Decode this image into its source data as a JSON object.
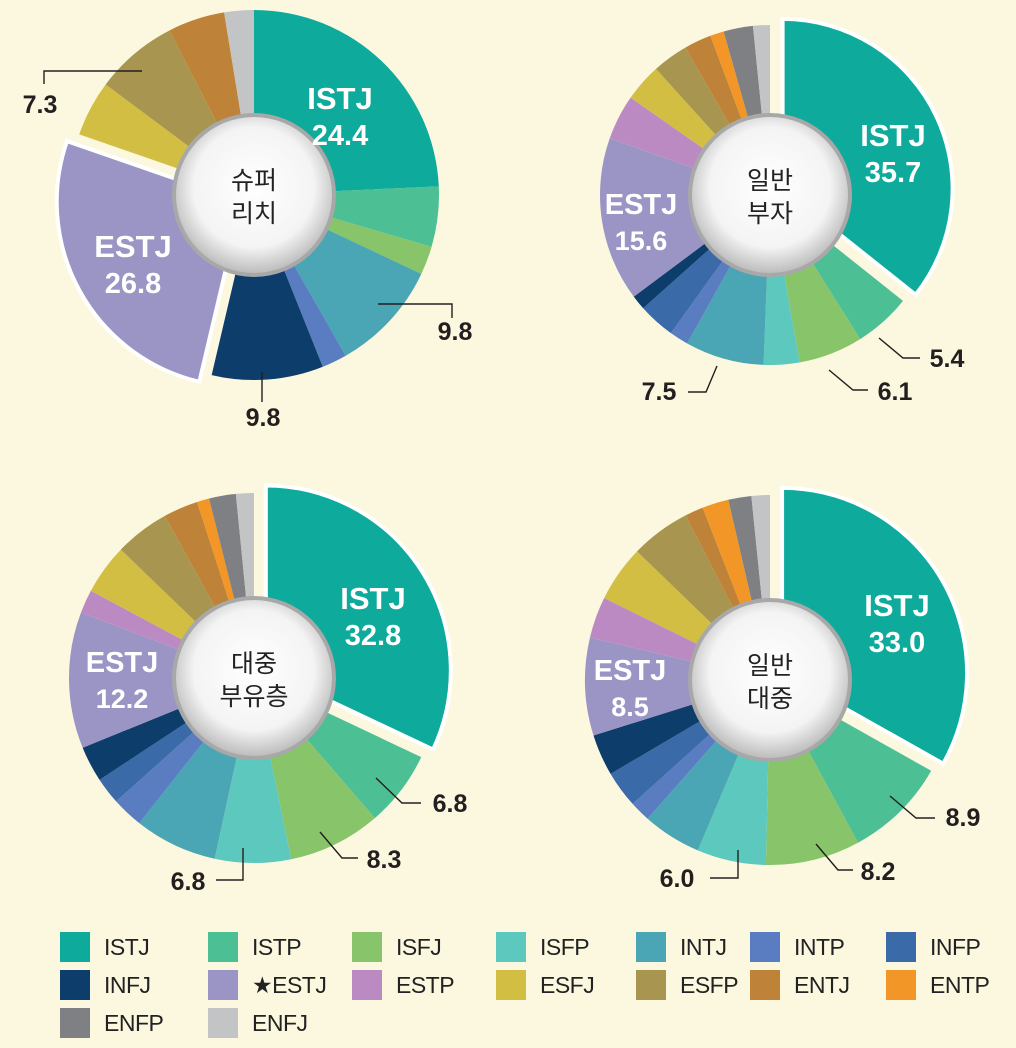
{
  "colors": {
    "ISTJ": "#0eaa9b",
    "ISTP": "#4dbf94",
    "ISFJ": "#88c46a",
    "ISFP": "#5dc8bd",
    "INTJ": "#4aa5b4",
    "INTP": "#5a7dc1",
    "INFP": "#3a6aa8",
    "INFJ": "#0c3d6b",
    "ESTJ": "#9b95c6",
    "ESTP": "#bb8ac2",
    "ESFJ": "#d3be44",
    "ESFP": "#a89650",
    "ENTJ": "#be8238",
    "ENTP": "#f29727",
    "ENFP": "#7f8083",
    "ENFJ": "#c2c4c6"
  },
  "chart_data": [
    {
      "type": "pie",
      "center_label": [
        "슈퍼",
        "리치"
      ],
      "order": [
        "ISTJ",
        "ISTP",
        "ISFJ",
        "INTJ",
        "INTP",
        "INFJ",
        "ESTJ",
        "ESFJ",
        "ESFP",
        "ENTJ",
        "ENFJ"
      ],
      "values": [
        24.4,
        5.3,
        2.5,
        9.8,
        2.2,
        9.8,
        26.8,
        4.9,
        7.3,
        5.0,
        2.6
      ],
      "exploded": [
        "ESTJ"
      ],
      "inner_labels": [
        {
          "type": "ISTJ",
          "name": "ISTJ",
          "value": "24.4"
        },
        {
          "type": "ESTJ",
          "name": "ESTJ",
          "value": "26.8"
        }
      ],
      "callouts": [
        {
          "type": "INTJ",
          "text": "9.8"
        },
        {
          "type": "INFJ",
          "text": "9.8"
        },
        {
          "type": "ESFP",
          "text": "7.3"
        }
      ]
    },
    {
      "type": "pie",
      "center_label": [
        "일반",
        "부자"
      ],
      "order": [
        "ISTJ",
        "ISTP",
        "ISFJ",
        "ISFP",
        "INTJ",
        "INTP",
        "INFP",
        "INFJ",
        "ESTJ",
        "ESTP",
        "ESFJ",
        "ESFP",
        "ENTJ",
        "ENTP",
        "ENFP",
        "ENFJ"
      ],
      "values": [
        35.7,
        5.4,
        6.1,
        3.4,
        7.5,
        1.8,
        3.5,
        1.4,
        15.6,
        4.3,
        3.6,
        3.4,
        2.6,
        1.3,
        2.8,
        1.6
      ],
      "exploded": [
        "ISTJ"
      ],
      "inner_labels": [
        {
          "type": "ISTJ",
          "name": "ISTJ",
          "value": "35.7"
        },
        {
          "type": "ESTJ",
          "name": "ESTJ",
          "value": "15.6"
        }
      ],
      "callouts": [
        {
          "type": "ISTP",
          "text": "5.4"
        },
        {
          "type": "ISFJ",
          "text": "6.1"
        },
        {
          "type": "INTJ",
          "text": "7.5"
        }
      ]
    },
    {
      "type": "pie",
      "center_label": [
        "대중",
        "부유층"
      ],
      "order": [
        "ISTJ",
        "ISTP",
        "ISFJ",
        "ISFP",
        "INTJ",
        "INTP",
        "INFP",
        "INFJ",
        "ESTJ",
        "ESTP",
        "ESFJ",
        "ESFP",
        "ENTJ",
        "ENTP",
        "ENFP",
        "ENFJ"
      ],
      "values": [
        32.8,
        6.8,
        8.3,
        6.8,
        7.4,
        2.8,
        2.4,
        3.2,
        12.2,
        2.1,
        4.5,
        4.9,
        3.1,
        1.1,
        2.4,
        1.6
      ],
      "exploded": [
        "ISTJ"
      ],
      "inner_labels": [
        {
          "type": "ISTJ",
          "name": "ISTJ",
          "value": "32.8"
        },
        {
          "type": "ESTJ",
          "name": "ESTJ",
          "value": "12.2"
        }
      ],
      "callouts": [
        {
          "type": "ISTP",
          "text": "6.8"
        },
        {
          "type": "ISFJ",
          "text": "8.3"
        },
        {
          "type": "ISFP",
          "text": "6.8"
        }
      ]
    },
    {
      "type": "pie",
      "center_label": [
        "일반",
        "대중"
      ],
      "order": [
        "ISTJ",
        "ISTP",
        "ISFJ",
        "ISFP",
        "INTJ",
        "INTP",
        "INFP",
        "INFJ",
        "ESTJ",
        "ESTP",
        "ESFJ",
        "ESFP",
        "ENTJ",
        "ENTP",
        "ENFP",
        "ENFJ"
      ],
      "values": [
        33.0,
        8.9,
        8.2,
        6.0,
        5.1,
        1.8,
        3.2,
        3.6,
        8.5,
        3.6,
        4.9,
        5.2,
        1.6,
        2.3,
        2.0,
        1.6
      ],
      "exploded": [
        "ISTJ"
      ],
      "inner_labels": [
        {
          "type": "ISTJ",
          "name": "ISTJ",
          "value": "33.0"
        },
        {
          "type": "ESTJ",
          "name": "ESTJ",
          "value": "8.5"
        }
      ],
      "callouts": [
        {
          "type": "ISTP",
          "text": "8.9"
        },
        {
          "type": "ISFJ",
          "text": "8.2"
        },
        {
          "type": "ISFP",
          "text": "6.0"
        }
      ]
    }
  ],
  "legend": [
    {
      "type": "ISTJ",
      "label": "ISTJ"
    },
    {
      "type": "ISTP",
      "label": "ISTP"
    },
    {
      "type": "ISFJ",
      "label": "ISFJ"
    },
    {
      "type": "ISFP",
      "label": "ISFP"
    },
    {
      "type": "INTJ",
      "label": "INTJ"
    },
    {
      "type": "INTP",
      "label": "INTP"
    },
    {
      "type": "INFP",
      "label": "INFP"
    },
    {
      "type": "INFJ",
      "label": "INFJ"
    },
    {
      "type": "ESTJ",
      "label": "★ESTJ"
    },
    {
      "type": "ESTP",
      "label": "ESTP"
    },
    {
      "type": "ESFJ",
      "label": "ESFJ"
    },
    {
      "type": "ESFP",
      "label": "ESFP"
    },
    {
      "type": "ENTJ",
      "label": "ENTJ"
    },
    {
      "type": "ENTP",
      "label": "ENTP"
    },
    {
      "type": "ENFP",
      "label": "ENFP"
    },
    {
      "type": "ENFJ",
      "label": "ENFJ"
    }
  ]
}
